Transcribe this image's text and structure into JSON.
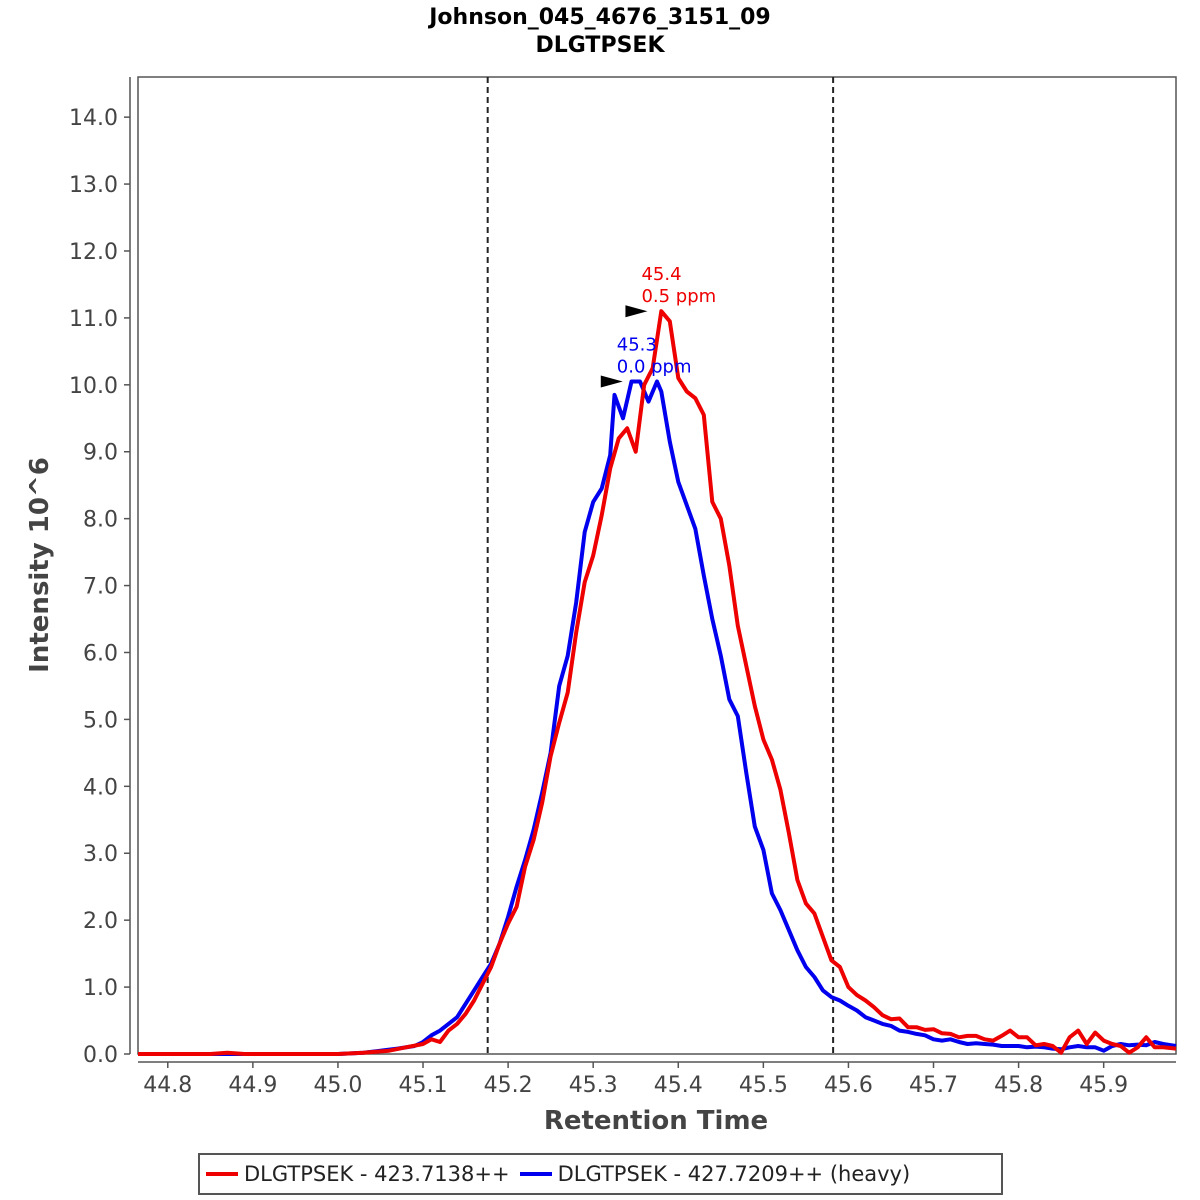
{
  "chart_data": {
    "type": "line",
    "title": "Johnson_045_4676_3151_09",
    "subtitle": "DLGTPSEK",
    "xlabel": "Retention Time",
    "ylabel": "Intensity 10^6",
    "xlim": [
      44.765,
      45.985
    ],
    "ylim": [
      0,
      14.6
    ],
    "x_ticks": [
      "44.8",
      "44.9",
      "45.0",
      "45.1",
      "45.2",
      "45.3",
      "45.4",
      "45.5",
      "45.6",
      "45.7",
      "45.8",
      "45.9"
    ],
    "y_ticks": [
      "0.0",
      "1.0",
      "2.0",
      "3.0",
      "4.0",
      "5.0",
      "6.0",
      "7.0",
      "8.0",
      "9.0",
      "10.0",
      "11.0",
      "12.0",
      "13.0",
      "14.0"
    ],
    "boundaries": [
      45.176,
      45.582
    ],
    "series": [
      {
        "name": "DLGTPSEK - 423.7138++",
        "color": "#ee0000",
        "x": [
          44.765,
          44.8,
          44.85,
          44.87,
          44.89,
          44.95,
          45.0,
          45.03,
          45.06,
          45.08,
          45.1,
          45.11,
          45.12,
          45.13,
          45.14,
          45.15,
          45.16,
          45.17,
          45.18,
          45.19,
          45.2,
          45.21,
          45.22,
          45.23,
          45.24,
          45.25,
          45.26,
          45.27,
          45.28,
          45.29,
          45.3,
          45.31,
          45.32,
          45.33,
          45.34,
          45.35,
          45.36,
          45.37,
          45.38,
          45.39,
          45.4,
          45.41,
          45.42,
          45.43,
          45.44,
          45.45,
          45.46,
          45.47,
          45.48,
          45.49,
          45.5,
          45.51,
          45.52,
          45.53,
          45.54,
          45.55,
          45.56,
          45.57,
          45.58,
          45.59,
          45.6,
          45.61,
          45.62,
          45.63,
          45.64,
          45.65,
          45.66,
          45.67,
          45.68,
          45.69,
          45.7,
          45.71,
          45.72,
          45.73,
          45.74,
          45.75,
          45.76,
          45.77,
          45.78,
          45.79,
          45.8,
          45.81,
          45.82,
          45.83,
          45.84,
          45.85,
          45.86,
          45.87,
          45.88,
          45.89,
          45.9,
          45.91,
          45.92,
          45.93,
          45.94,
          45.95,
          45.96,
          45.97,
          45.985
        ],
        "values": [
          0.0,
          0.0,
          0.0,
          0.02,
          0.0,
          0.0,
          0.0,
          0.02,
          0.05,
          0.1,
          0.15,
          0.22,
          0.18,
          0.35,
          0.45,
          0.6,
          0.8,
          1.05,
          1.3,
          1.65,
          1.95,
          2.2,
          2.8,
          3.2,
          3.75,
          4.45,
          4.95,
          5.4,
          6.3,
          7.05,
          7.45,
          8.05,
          8.75,
          9.2,
          9.35,
          9.0,
          10.0,
          10.25,
          11.1,
          10.95,
          10.1,
          9.9,
          9.8,
          9.55,
          8.25,
          8.0,
          7.3,
          6.4,
          5.8,
          5.2,
          4.7,
          4.4,
          3.95,
          3.3,
          2.6,
          2.25,
          2.1,
          1.75,
          1.4,
          1.3,
          1.0,
          0.88,
          0.8,
          0.7,
          0.58,
          0.52,
          0.53,
          0.4,
          0.4,
          0.36,
          0.37,
          0.31,
          0.3,
          0.25,
          0.27,
          0.27,
          0.22,
          0.2,
          0.27,
          0.35,
          0.25,
          0.25,
          0.13,
          0.15,
          0.12,
          0.02,
          0.25,
          0.35,
          0.15,
          0.32,
          0.2,
          0.15,
          0.12,
          0.02,
          0.1,
          0.25,
          0.1,
          0.1,
          0.08
        ]
      },
      {
        "name": "DLGTPSEK - 427.7209++ (heavy)",
        "color": "#0000ee",
        "x": [
          44.765,
          44.8,
          44.85,
          44.9,
          44.95,
          45.0,
          45.03,
          45.05,
          45.07,
          45.09,
          45.1,
          45.11,
          45.12,
          45.13,
          45.14,
          45.15,
          45.16,
          45.17,
          45.18,
          45.19,
          45.2,
          45.21,
          45.22,
          45.23,
          45.24,
          45.25,
          45.26,
          45.27,
          45.28,
          45.29,
          45.3,
          45.31,
          45.32,
          45.325,
          45.335,
          45.345,
          45.355,
          45.365,
          45.375,
          45.38,
          45.39,
          45.4,
          45.41,
          45.42,
          45.43,
          45.44,
          45.45,
          45.46,
          45.47,
          45.48,
          45.49,
          45.5,
          45.51,
          45.52,
          45.53,
          45.54,
          45.55,
          45.56,
          45.57,
          45.58,
          45.59,
          45.6,
          45.61,
          45.62,
          45.63,
          45.64,
          45.65,
          45.66,
          45.67,
          45.68,
          45.69,
          45.7,
          45.71,
          45.72,
          45.73,
          45.74,
          45.75,
          45.76,
          45.77,
          45.78,
          45.79,
          45.8,
          45.81,
          45.82,
          45.83,
          45.84,
          45.85,
          45.86,
          45.87,
          45.88,
          45.89,
          45.9,
          45.91,
          45.92,
          45.93,
          45.94,
          45.95,
          45.96,
          45.97,
          45.985
        ],
        "values": [
          0.0,
          0.0,
          0.0,
          0.0,
          0.0,
          0.0,
          0.02,
          0.05,
          0.08,
          0.12,
          0.18,
          0.28,
          0.35,
          0.45,
          0.55,
          0.75,
          0.95,
          1.15,
          1.35,
          1.65,
          2.05,
          2.5,
          2.9,
          3.35,
          3.9,
          4.5,
          5.5,
          5.95,
          6.75,
          7.8,
          8.25,
          8.45,
          8.95,
          9.85,
          9.5,
          10.05,
          10.05,
          9.75,
          10.05,
          9.9,
          9.15,
          8.55,
          8.2,
          7.85,
          7.15,
          6.5,
          5.95,
          5.3,
          5.05,
          4.2,
          3.4,
          3.05,
          2.4,
          2.15,
          1.85,
          1.55,
          1.3,
          1.15,
          0.95,
          0.85,
          0.8,
          0.72,
          0.65,
          0.55,
          0.5,
          0.45,
          0.42,
          0.35,
          0.33,
          0.3,
          0.28,
          0.22,
          0.2,
          0.22,
          0.18,
          0.15,
          0.16,
          0.15,
          0.14,
          0.12,
          0.12,
          0.12,
          0.1,
          0.11,
          0.1,
          0.08,
          0.07,
          0.1,
          0.12,
          0.1,
          0.1,
          0.05,
          0.12,
          0.15,
          0.13,
          0.14,
          0.13,
          0.18,
          0.15,
          0.12
        ]
      }
    ],
    "annotations": [
      {
        "x": 45.372,
        "y": 11.1,
        "line1": "45.4",
        "line2": "0.5 ppm",
        "color": "#ee0000"
      },
      {
        "x": 45.343,
        "y": 10.05,
        "line1": "45.3",
        "line2": "0.0 ppm",
        "color": "#0000ee"
      }
    ],
    "legend": [
      {
        "label": "DLGTPSEK - 423.7138++",
        "color": "#ee0000"
      },
      {
        "label": "DLGTPSEK - 427.7209++ (heavy)",
        "color": "#0000ee"
      }
    ]
  }
}
